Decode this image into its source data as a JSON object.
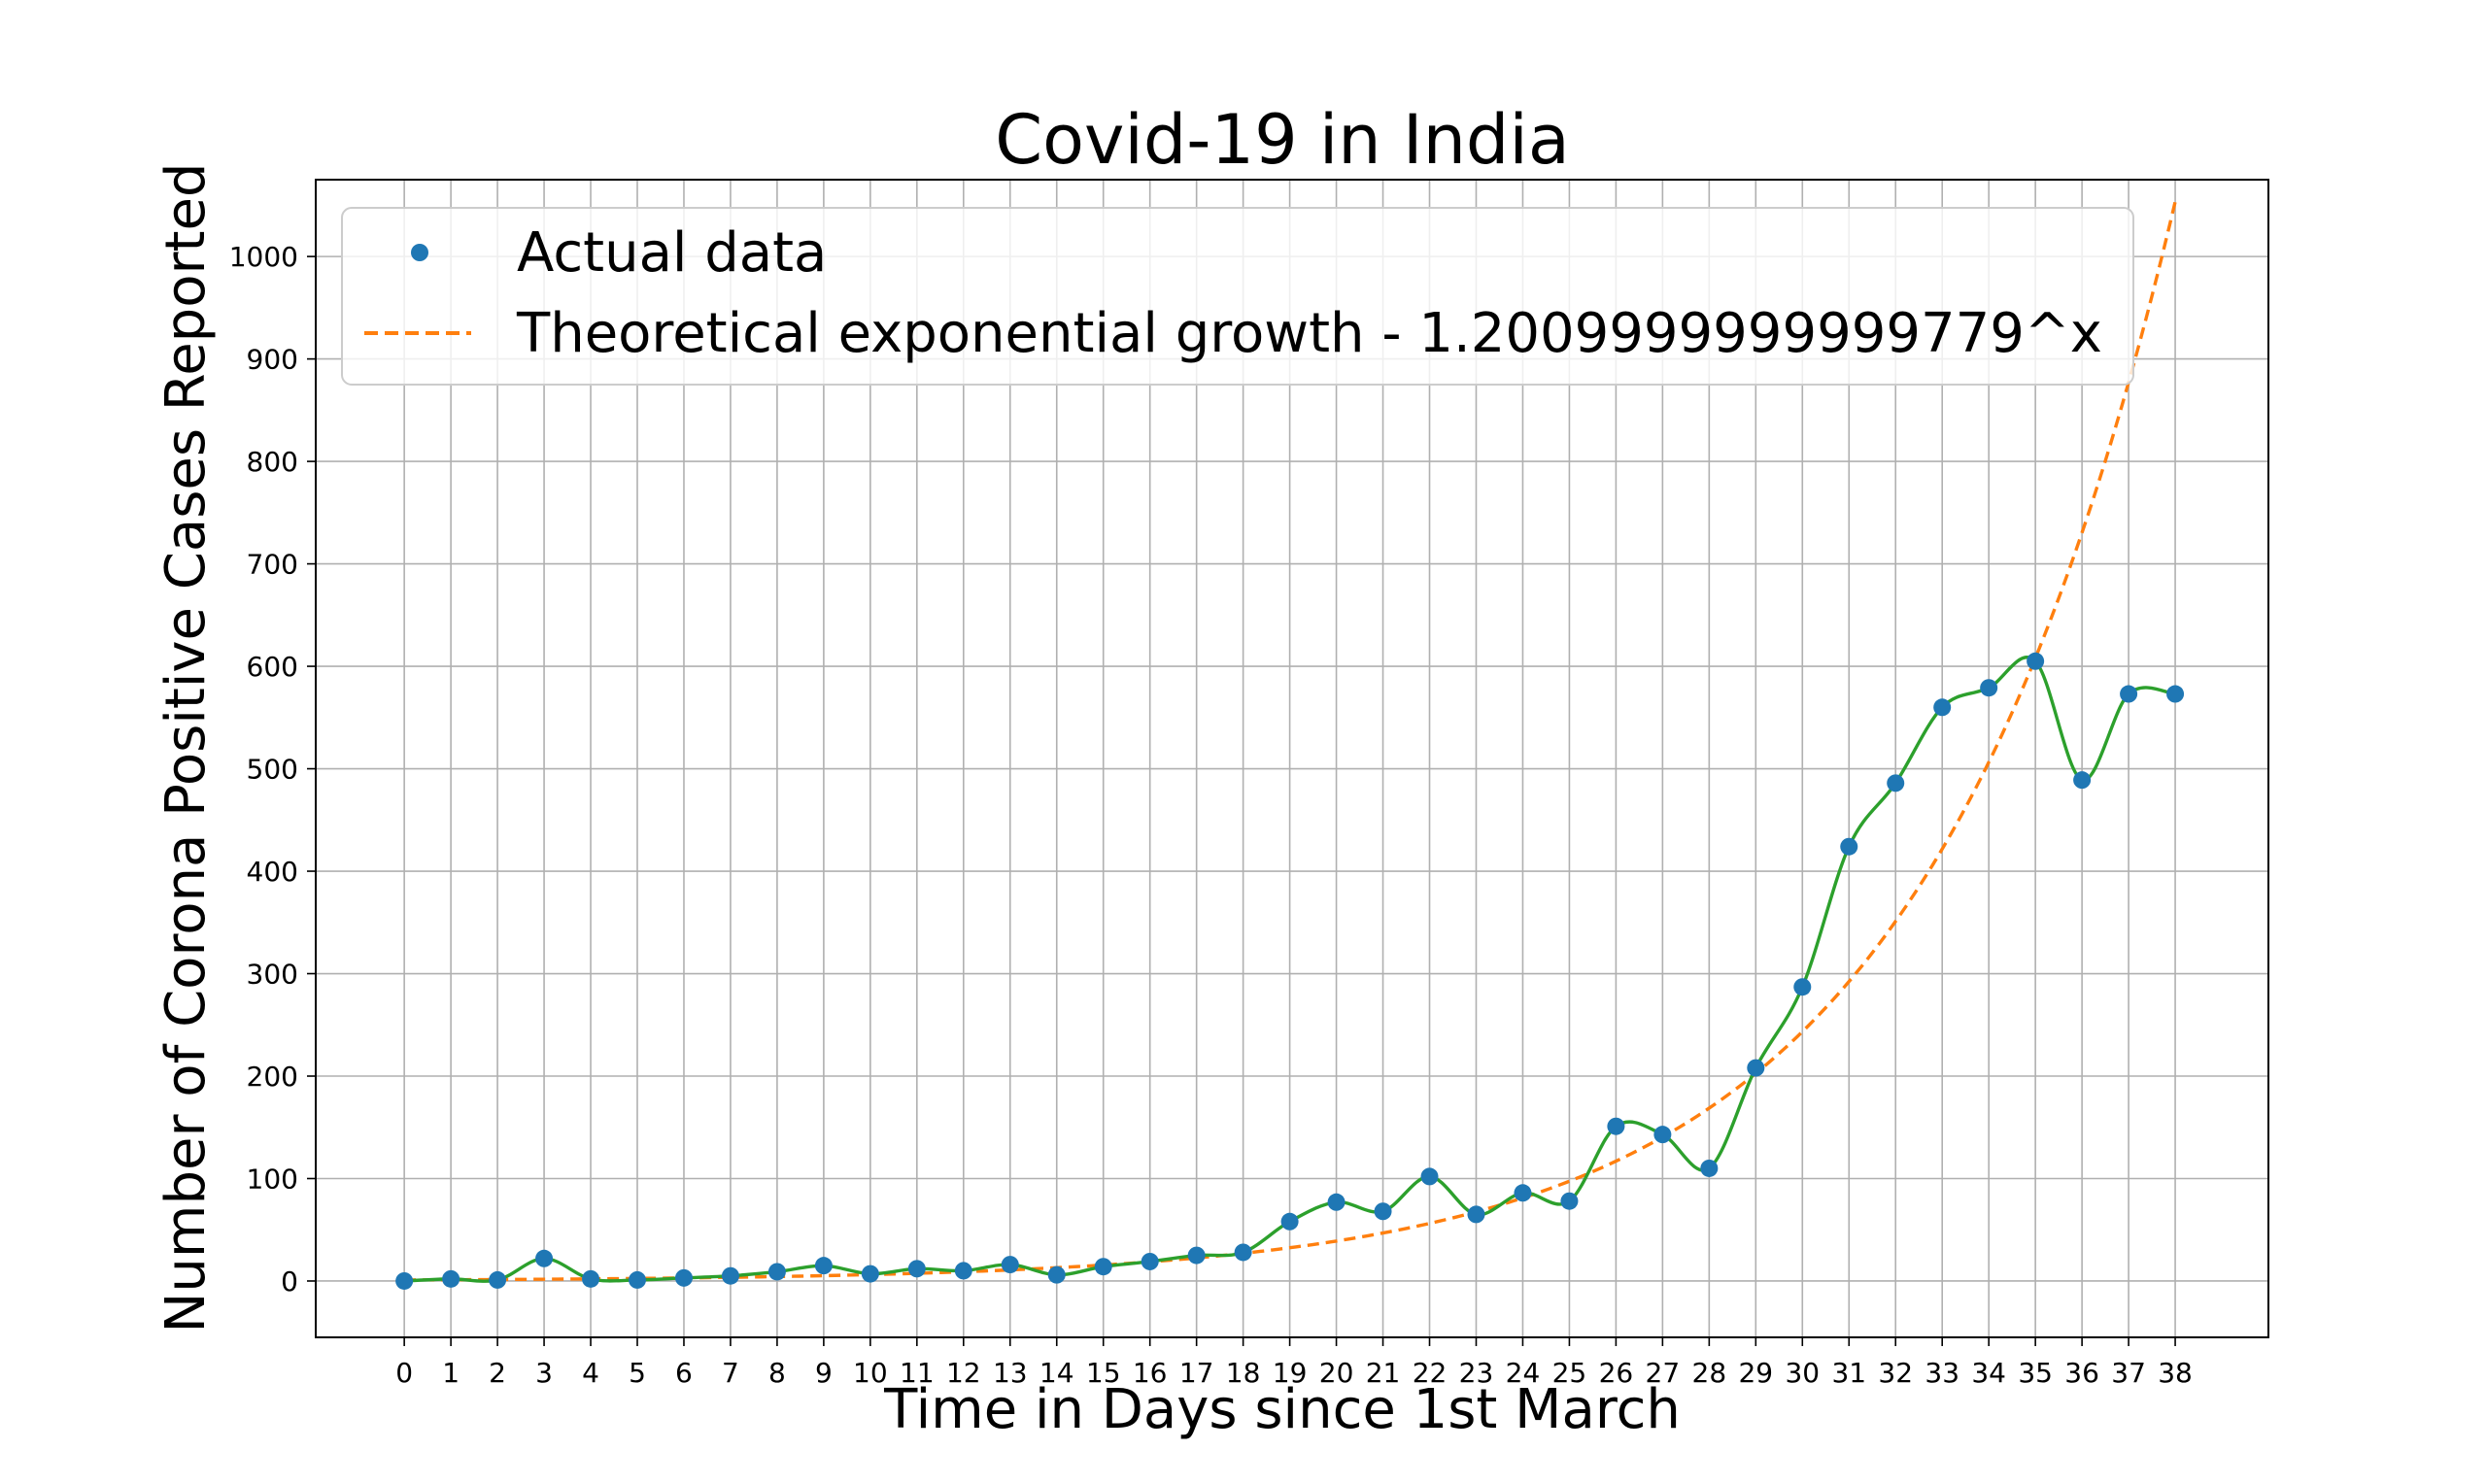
{
  "chart_data": {
    "type": "line",
    "title": "Covid-19 in India",
    "xlabel": "Time in Days since 1st March",
    "ylabel": "Number of Corona Positive Cases Reported",
    "xlim": [
      -1.9,
      40.0
    ],
    "ylim": [
      -55,
      1075
    ],
    "x_ticks": [
      0,
      1,
      2,
      3,
      4,
      5,
      6,
      7,
      8,
      9,
      10,
      11,
      12,
      13,
      14,
      15,
      16,
      17,
      18,
      19,
      20,
      21,
      22,
      23,
      24,
      25,
      26,
      27,
      28,
      29,
      30,
      31,
      32,
      33,
      34,
      35,
      36,
      37,
      38
    ],
    "y_ticks": [
      0,
      100,
      200,
      300,
      400,
      500,
      600,
      700,
      800,
      900,
      1000
    ],
    "grid": true,
    "legend_position": "top-left",
    "series": [
      {
        "name": "Actual data",
        "kind": "scatter",
        "color": "#1f77b4",
        "x": [
          0,
          1,
          2,
          3,
          4,
          5,
          6,
          7,
          8,
          9,
          10,
          11,
          12,
          13,
          14,
          15,
          16,
          17,
          18,
          19,
          20,
          21,
          22,
          23,
          24,
          25,
          26,
          27,
          28,
          29,
          30,
          31,
          32,
          33,
          34,
          35,
          36,
          37,
          38
        ],
        "y": [
          0,
          2,
          1,
          22,
          2,
          1,
          3,
          5,
          9,
          15,
          7,
          12,
          10,
          16,
          6,
          14,
          19,
          25,
          28,
          58,
          77,
          68,
          102,
          65,
          86,
          78,
          151,
          143,
          110,
          208,
          287,
          424,
          486,
          560,
          579,
          605,
          489,
          573,
          573
        ]
      },
      {
        "name": "Theoretical exponential growth - 1.2009999999999779^x",
        "kind": "dashed-line",
        "color": "#ff7f0e",
        "base": 1.2009999999999779,
        "x_range": [
          0,
          38
        ]
      },
      {
        "name": "",
        "kind": "smooth-line",
        "color": "#2ca02c",
        "follows": "Actual data"
      }
    ]
  }
}
